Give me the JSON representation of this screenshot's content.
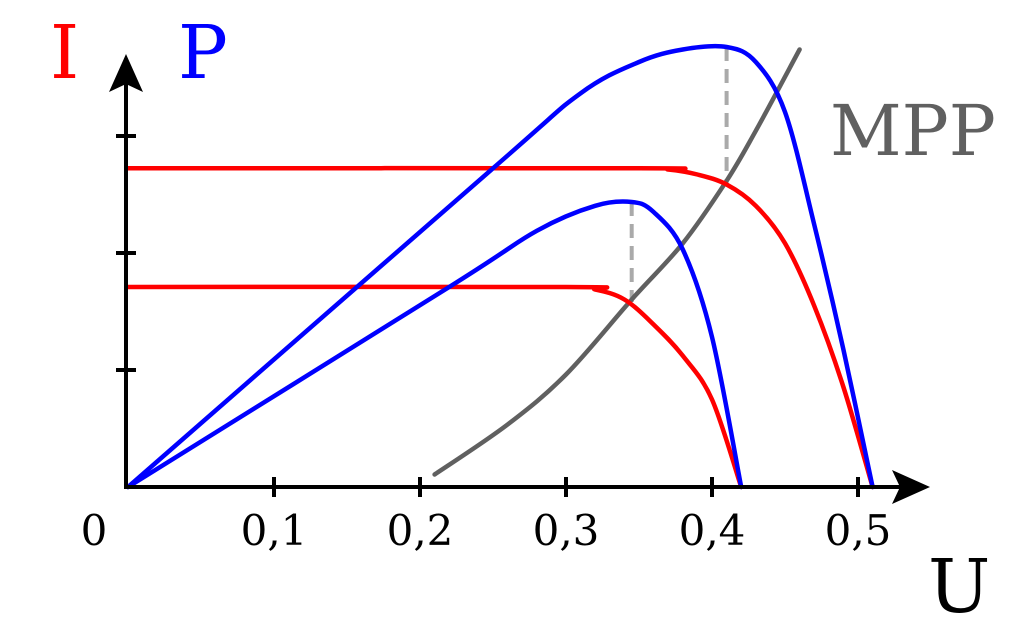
{
  "chart_data": {
    "type": "line",
    "ylabels": {
      "current": {
        "text": "I",
        "color": "#ff0000"
      },
      "power": {
        "text": "P",
        "color": "#0000ff"
      }
    },
    "xlabel": "U",
    "mpp_label": "MPP",
    "x_ticks": [
      {
        "value": 0.0,
        "label": "0"
      },
      {
        "value": 0.1,
        "label": "0,1"
      },
      {
        "value": 0.2,
        "label": "0,2"
      },
      {
        "value": 0.3,
        "label": "0,3"
      },
      {
        "value": 0.4,
        "label": "0,4"
      },
      {
        "value": 0.5,
        "label": "0,5"
      }
    ],
    "y_ticks": [
      1,
      2,
      3
    ],
    "xlim": [
      0,
      0.54
    ],
    "ylim": [
      0,
      3.1
    ],
    "colors": {
      "current": "#ff0000",
      "power": "#0000ff",
      "mpp": "#606060",
      "guide": "#aaaaaa",
      "axis": "#000000"
    },
    "series": [
      {
        "kind": "current",
        "points": [
          [
            0,
            2.55
          ],
          [
            0.35,
            2.55
          ],
          [
            0.37,
            2.54
          ],
          [
            0.39,
            2.5
          ],
          [
            0.41,
            2.42
          ],
          [
            0.43,
            2.25
          ],
          [
            0.45,
            1.95
          ],
          [
            0.47,
            1.45
          ],
          [
            0.49,
            0.8
          ],
          [
            0.51,
            0
          ]
        ]
      },
      {
        "kind": "current",
        "points": [
          [
            0,
            1.6
          ],
          [
            0.3,
            1.6
          ],
          [
            0.32,
            1.58
          ],
          [
            0.34,
            1.5
          ],
          [
            0.36,
            1.3
          ],
          [
            0.38,
            1.05
          ],
          [
            0.4,
            0.7
          ],
          [
            0.42,
            0
          ]
        ]
      },
      {
        "kind": "power",
        "points": [
          [
            0,
            0
          ],
          [
            0.25,
            2.55
          ],
          [
            0.31,
            3.15
          ],
          [
            0.35,
            3.4
          ],
          [
            0.38,
            3.5
          ],
          [
            0.41,
            3.52
          ],
          [
            0.43,
            3.4
          ],
          [
            0.45,
            3.0
          ],
          [
            0.47,
            2.1
          ],
          [
            0.49,
            1.1
          ],
          [
            0.51,
            0
          ]
        ]
      },
      {
        "kind": "power",
        "points": [
          [
            0,
            0
          ],
          [
            0.22,
            1.6
          ],
          [
            0.28,
            2.05
          ],
          [
            0.32,
            2.25
          ],
          [
            0.345,
            2.28
          ],
          [
            0.36,
            2.2
          ],
          [
            0.38,
            1.9
          ],
          [
            0.4,
            1.2
          ],
          [
            0.42,
            0
          ]
        ]
      },
      {
        "kind": "mpp",
        "points": [
          [
            0.21,
            0.1
          ],
          [
            0.26,
            0.5
          ],
          [
            0.3,
            0.9
          ],
          [
            0.345,
            1.5
          ],
          [
            0.38,
            1.95
          ],
          [
            0.41,
            2.45
          ],
          [
            0.43,
            2.85
          ],
          [
            0.46,
            3.5
          ]
        ]
      }
    ],
    "mpp_points": [
      {
        "x": 0.41,
        "current": 2.42,
        "power": 3.52
      },
      {
        "x": 0.345,
        "current": 1.48,
        "power": 2.28
      }
    ]
  }
}
